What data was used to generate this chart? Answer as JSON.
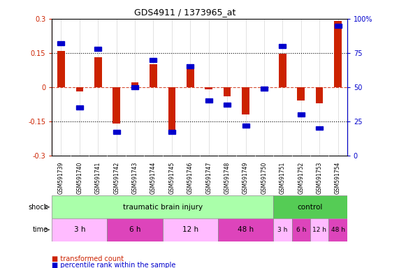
{
  "title": "GDS4911 / 1373965_at",
  "samples": [
    "GSM591739",
    "GSM591740",
    "GSM591741",
    "GSM591742",
    "GSM591743",
    "GSM591744",
    "GSM591745",
    "GSM591746",
    "GSM591747",
    "GSM591748",
    "GSM591749",
    "GSM591750",
    "GSM591751",
    "GSM591752",
    "GSM591753",
    "GSM591754"
  ],
  "red_values": [
    0.16,
    -0.02,
    0.13,
    -0.16,
    0.02,
    0.1,
    -0.195,
    0.1,
    -0.01,
    -0.04,
    -0.12,
    -0.01,
    0.145,
    -0.06,
    -0.07,
    0.29
  ],
  "blue_values_pct": [
    82,
    35,
    78,
    17,
    50,
    70,
    17,
    65,
    40,
    37,
    22,
    49,
    80,
    30,
    20,
    95
  ],
  "ylim_left": [
    -0.3,
    0.3
  ],
  "ylim_right": [
    0,
    100
  ],
  "left_yticks": [
    -0.3,
    -0.15,
    0.0,
    0.15,
    0.3
  ],
  "right_yticks": [
    0,
    25,
    50,
    75,
    100
  ],
  "left_yticklabels": [
    "-0.3",
    "-0.15",
    "0",
    "0.15",
    "0.3"
  ],
  "right_yticklabels": [
    "0",
    "25",
    "50",
    "75",
    "100%"
  ],
  "red_color": "#cc2200",
  "blue_color": "#0000cc",
  "tbi_color": "#aaffaa",
  "ctrl_color": "#55cc55",
  "time_light": "#ffbbff",
  "time_dark": "#dd44bb",
  "sample_bg": "#cccccc",
  "tbi_time_blocks": [
    {
      "label": "3 h",
      "start": 0,
      "end": 3
    },
    {
      "label": "6 h",
      "start": 3,
      "end": 6
    },
    {
      "label": "12 h",
      "start": 6,
      "end": 9
    },
    {
      "label": "48 h",
      "start": 9,
      "end": 12
    }
  ],
  "ctrl_time_blocks": [
    {
      "label": "3 h",
      "start": 12,
      "end": 13
    },
    {
      "label": "6 h",
      "start": 13,
      "end": 14
    },
    {
      "label": "12 h",
      "start": 14,
      "end": 15
    },
    {
      "label": "48 h",
      "start": 15,
      "end": 16
    }
  ]
}
